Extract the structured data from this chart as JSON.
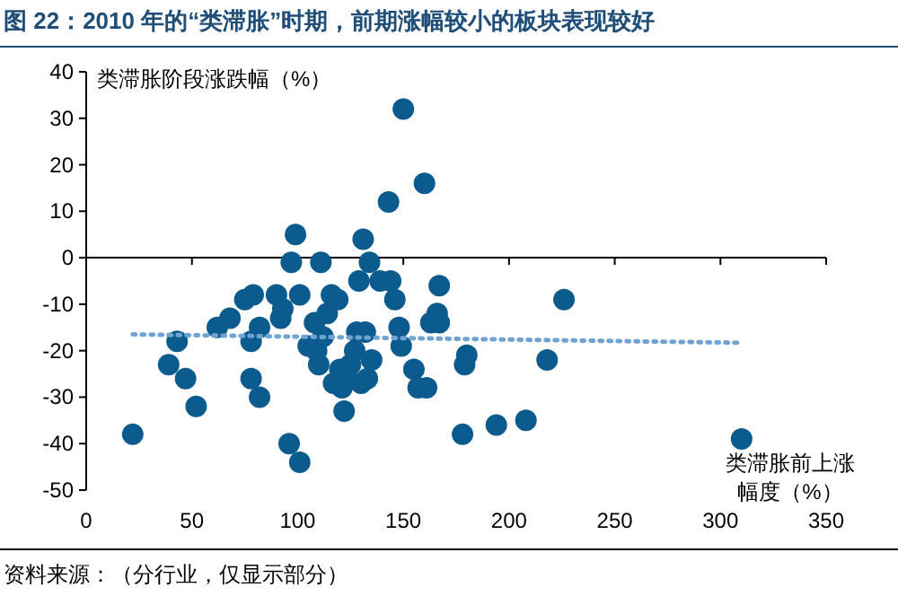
{
  "chart_data": {
    "type": "scatter",
    "title": "图 22：2010 年的“类滞胀”时期，前期涨幅较小的板块表现较好",
    "xlabel": "类滞胀前上涨幅度（%）",
    "ylabel": "类滞胀阶段涨跌幅（%）",
    "annotations": [
      "资料来源：（分行业，仅显示部分）"
    ],
    "xlim": [
      0,
      350
    ],
    "xticks": [
      0,
      50,
      100,
      150,
      200,
      250,
      300,
      350
    ],
    "ylim": [
      -50,
      40
    ],
    "yticks": [
      -50,
      -40,
      -30,
      -20,
      -10,
      0,
      10,
      20,
      30,
      40
    ],
    "series": [
      {
        "type": "scatter",
        "marker": "circle",
        "color": "#0b5b8e",
        "x": [
          22,
          39,
          43,
          47,
          52,
          62,
          68,
          75,
          79,
          78,
          78,
          82,
          82,
          90,
          92,
          93,
          96,
          97,
          99,
          101,
          101,
          105,
          108,
          109,
          110,
          111,
          112,
          114,
          116,
          117,
          119,
          120,
          121,
          122,
          123,
          125,
          127,
          128,
          129,
          130,
          131,
          132,
          133,
          134,
          135,
          139,
          143,
          144,
          146,
          148,
          149,
          150,
          155,
          157,
          160,
          161,
          163,
          166,
          167,
          167,
          179,
          180,
          178,
          194,
          208,
          218,
          226,
          310
        ],
        "values": [
          -38,
          -23,
          -18,
          -26,
          -32,
          -15,
          -13,
          -9,
          -8,
          -18,
          -26,
          -30,
          -15,
          -8,
          -13,
          -11,
          -40,
          -1,
          5,
          -8,
          -44,
          -19,
          -14,
          -20,
          -23,
          -1,
          -17,
          -12,
          -8,
          -27,
          -9,
          -24,
          -28,
          -33,
          -25,
          -23,
          -20,
          -16,
          -5,
          -27,
          4,
          -16,
          -26,
          -1,
          -22,
          -5,
          12,
          -5,
          -9,
          -15,
          -19,
          32,
          -24,
          -28,
          16,
          -28,
          -14,
          -12,
          -6,
          -14,
          -23,
          -21,
          -38,
          -36,
          -35,
          -22,
          -9,
          -39
        ]
      },
      {
        "type": "line",
        "line_style": "dotted",
        "color": "#6fa3d4",
        "x": [
          22,
          310
        ],
        "values": [
          -16.5,
          -18.3
        ]
      }
    ]
  }
}
